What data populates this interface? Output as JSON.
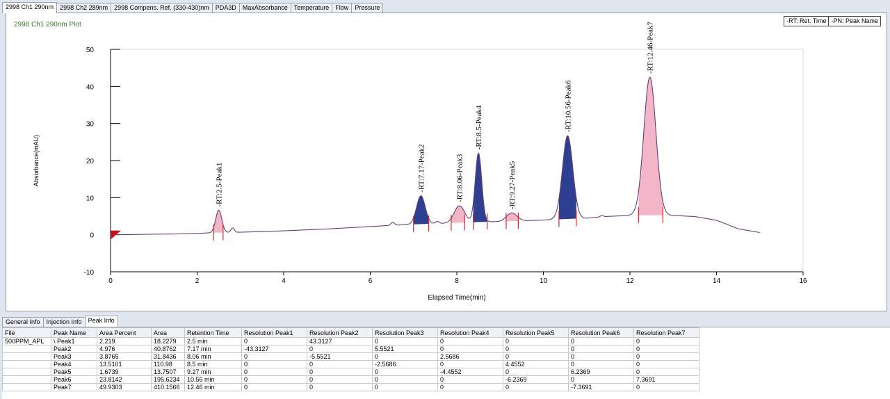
{
  "tabs": [
    "2998 Ch1 290nm",
    "2998 Ch2 289nm",
    "2998 Compens. Ref. (330-430)nm",
    "PDA3D",
    "MaxAbsorbance",
    "Temperature",
    "Flow",
    "Pressure"
  ],
  "plot": {
    "title": "2998 Ch1 290nm Plot",
    "legend": [
      "-RT: Ret. Time",
      "-PN: Peak Name"
    ]
  },
  "colors": {
    "trace": "#6a3a7a",
    "peak_pink": "#f3b6c9",
    "peak_blue": "#2e3f91",
    "marker": "#e02020",
    "start_marker": "#c0141c",
    "title_green": "#3c7a2a"
  },
  "chart_data": {
    "type": "line",
    "xlabel": "Elapsed Time(min)",
    "ylabel": "Absorbance(mAU)",
    "xlim": [
      0,
      16
    ],
    "ylim": [
      -10,
      50
    ],
    "x_ticks": [
      0,
      2,
      4,
      6,
      8,
      10,
      12,
      14,
      16
    ],
    "y_ticks": [
      -10,
      0,
      10,
      20,
      30,
      40,
      50
    ],
    "grid": false,
    "baseline": [
      [
        0,
        0
      ],
      [
        0.5,
        0.05
      ],
      [
        1,
        0.15
      ],
      [
        1.5,
        0.2
      ],
      [
        2,
        0.35
      ],
      [
        2.3,
        0.5
      ],
      [
        2.9,
        0.65
      ],
      [
        3.5,
        0.85
      ],
      [
        4,
        1.05
      ],
      [
        5,
        1.55
      ],
      [
        6,
        2.2
      ],
      [
        6.5,
        2.55
      ],
      [
        7,
        2.8
      ],
      [
        7.5,
        3.0
      ],
      [
        8,
        3.2
      ],
      [
        8.5,
        3.45
      ],
      [
        9,
        3.55
      ],
      [
        9.5,
        3.75
      ],
      [
        10,
        3.95
      ],
      [
        10.5,
        4.25
      ],
      [
        11,
        4.45
      ],
      [
        11.5,
        4.95
      ],
      [
        12,
        5.2
      ],
      [
        12.5,
        5.3
      ],
      [
        13,
        5.2
      ],
      [
        13.5,
        4.9
      ],
      [
        14,
        3.9
      ],
      [
        14.5,
        1.6
      ],
      [
        15,
        0.6
      ]
    ],
    "peaks": [
      {
        "label": "-RT:2.5-Peak1",
        "rt": 2.5,
        "apex": 6.6,
        "width": 0.07,
        "fill": "pink",
        "start": 2.38,
        "end": 2.6
      },
      {
        "label": "-RT:7.17-Peak2",
        "rt": 7.17,
        "apex": 10.5,
        "width": 0.1,
        "fill": "blue",
        "start": 7.0,
        "end": 7.35
      },
      {
        "label": "-RT:8.06-Peak3",
        "rt": 8.06,
        "apex": 7.8,
        "width": 0.12,
        "fill": "pink",
        "start": 7.87,
        "end": 8.18
      },
      {
        "label": "-RT:8.5-Peak4",
        "rt": 8.5,
        "apex": 22.0,
        "width": 0.075,
        "fill": "blue",
        "start": 8.38,
        "end": 8.7
      },
      {
        "label": "-RT:9.27-Peak5",
        "rt": 9.27,
        "apex": 5.9,
        "width": 0.12,
        "fill": "pink",
        "start": 9.14,
        "end": 9.42
      },
      {
        "label": "-RT:10.56-Peak6",
        "rt": 10.56,
        "apex": 26.7,
        "width": 0.12,
        "fill": "blue",
        "start": 10.36,
        "end": 10.76
      },
      {
        "label": "-RT:12.46-Peak7",
        "rt": 12.46,
        "apex": 42.5,
        "width": 0.14,
        "fill": "pink",
        "start": 12.2,
        "end": 12.76
      }
    ],
    "small_bumps": [
      {
        "rt": 2.82,
        "h": 1.2
      },
      {
        "rt": 6.52,
        "h": 0.8
      },
      {
        "rt": 7.55,
        "h": 0.6
      },
      {
        "rt": 11.35,
        "h": 0.35
      }
    ]
  },
  "bottom_tabs": [
    "General Info",
    "Injection Info",
    "Peak Info"
  ],
  "table": {
    "headers": [
      "File",
      "Peak Name",
      "Area Percent",
      "Area",
      "Retention Time",
      "Resolution Peak1",
      "Resolution Peak2",
      "Resolution Peak3",
      "Resolution Peak4",
      "Resolution Peak5",
      "Resolution Peak6",
      "Resolution Peak7"
    ],
    "rows": [
      [
        "500PPM_APL",
        "\\ Peak1",
        "2.219",
        "18.2279",
        "2.5 min",
        "0",
        "43.3127",
        "0",
        "0",
        "0",
        "0",
        "0"
      ],
      [
        "",
        "Peak2",
        "4.976",
        "40.8762",
        "7.17 min",
        "-43.3127",
        "0",
        "5.5521",
        "0",
        "0",
        "0",
        "0"
      ],
      [
        "",
        "Peak3",
        "3.8765",
        "31.8436",
        "8.06 min",
        "0",
        "-5.5521",
        "0",
        "2.5686",
        "0",
        "0",
        "0"
      ],
      [
        "",
        "Peak4",
        "13.5101",
        "110.98",
        "8.5 min",
        "0",
        "0",
        "-2.5686",
        "0",
        "4.4552",
        "0",
        "0"
      ],
      [
        "",
        "Peak5",
        "1.6739",
        "13.7507",
        "9.27 min",
        "0",
        "0",
        "0",
        "-4.4552",
        "0",
        "6.2369",
        "0"
      ],
      [
        "",
        "Peak6",
        "23.8142",
        "195.6234",
        "10.56 min",
        "0",
        "0",
        "0",
        "0",
        "-6.2369",
        "0",
        "7.3691"
      ],
      [
        "",
        "Peak7",
        "49.9303",
        "410.1566",
        "12.46 min",
        "0",
        "0",
        "0",
        "0",
        "0",
        "-7.3691",
        "0"
      ]
    ]
  }
}
